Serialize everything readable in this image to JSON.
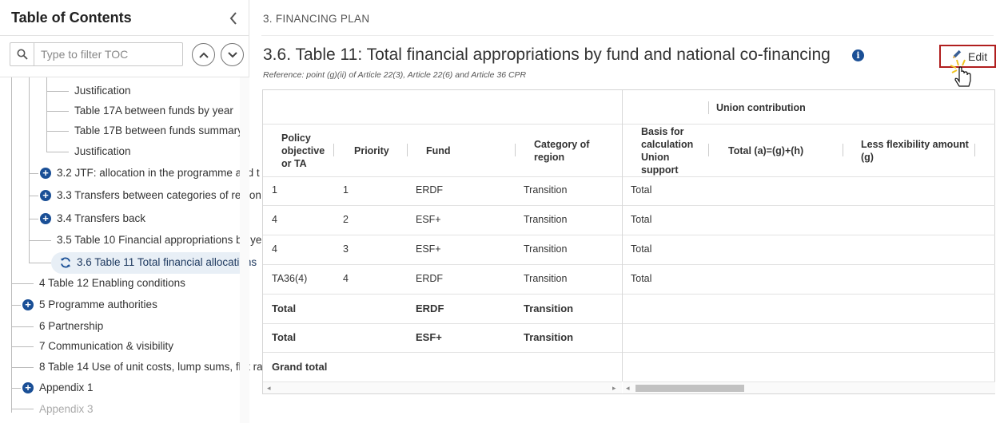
{
  "sidebar": {
    "title": "Table of Contents",
    "filter_placeholder": "Type to filter TOC",
    "items": [
      {
        "label": "Justification"
      },
      {
        "label": "Table 17A between funds by year"
      },
      {
        "label": "Table 17B between funds summary"
      },
      {
        "label": "Justification"
      },
      {
        "label": "3.2 JTF: allocation in the programme and t"
      },
      {
        "label": "3.3 Transfers between categories of region"
      },
      {
        "label": "3.4 Transfers back"
      },
      {
        "label": "3.5 Table 10 Financial appropriations by ye"
      },
      {
        "label": "3.6 Table 11 Total financial allocations"
      },
      {
        "label": "4 Table 12 Enabling conditions"
      },
      {
        "label": "5 Programme authorities"
      },
      {
        "label": "6 Partnership"
      },
      {
        "label": "7 Communication & visibility"
      },
      {
        "label": "8 Table 14 Use of unit costs, lump sums, flat ra"
      },
      {
        "label": "Appendix 1"
      },
      {
        "label": "Appendix 3"
      }
    ]
  },
  "main": {
    "section_title": "3. FINANCING PLAN",
    "heading": "3.6. Table 11: Total financial appropriations by fund and national co-financing",
    "reference": "Reference: point (g)(ii) of Article 22(3), Article 22(6) and Article 36 CPR",
    "edit_label": "Edit"
  },
  "table": {
    "group_header": "Union contribution",
    "headers": {
      "policy": "Policy objective or TA",
      "priority": "Priority",
      "fund": "Fund",
      "category": "Category of region",
      "basis": "Basis for calculation Union support",
      "total": "Total (a)=(g)+(h)",
      "less": "Less flexibility amount (g)"
    },
    "rows": [
      {
        "policy": "1",
        "priority": "1",
        "fund": "ERDF",
        "category": "Transition",
        "basis": "Total"
      },
      {
        "policy": "4",
        "priority": "2",
        "fund": "ESF+",
        "category": "Transition",
        "basis": "Total"
      },
      {
        "policy": "4",
        "priority": "3",
        "fund": "ESF+",
        "category": "Transition",
        "basis": "Total"
      },
      {
        "policy": "TA36(4)",
        "priority": "4",
        "fund": "ERDF",
        "category": "Transition",
        "basis": "Total"
      }
    ],
    "totals": [
      {
        "label": "Total",
        "fund": "ERDF",
        "category": "Transition"
      },
      {
        "label": "Total",
        "fund": "ESF+",
        "category": "Transition"
      }
    ],
    "grand_total": "Grand total"
  }
}
